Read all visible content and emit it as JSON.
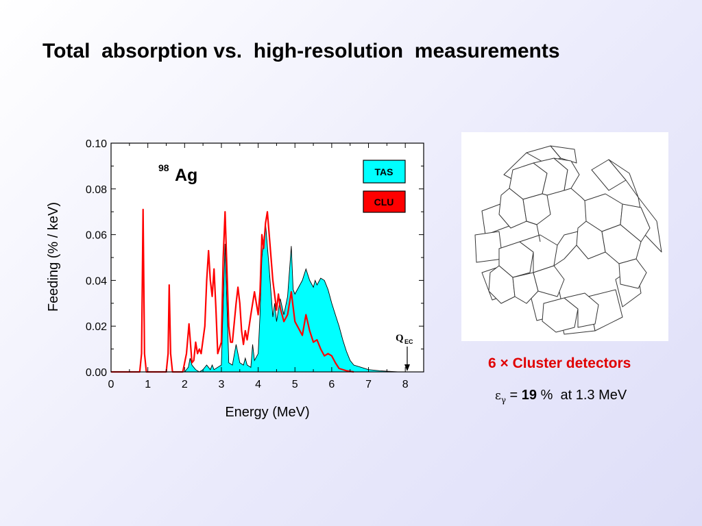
{
  "slide": {
    "title": "Total  absorption vs.  high-resolution  measurements"
  },
  "chart_data": {
    "type": "area",
    "xlabel": "Energy (MeV)",
    "ylabel": "Feeding (% / keV)",
    "xlim": [
      0,
      8.5
    ],
    "ylim": [
      0,
      0.1
    ],
    "x_ticks": [
      "0",
      "1",
      "2",
      "3",
      "4",
      "5",
      "6",
      "7",
      "8"
    ],
    "y_ticks": [
      "0.00",
      "0.02",
      "0.04",
      "0.06",
      "0.08",
      "0.10"
    ],
    "isotope": {
      "mass": "98",
      "element": "Ag"
    },
    "legend": [
      {
        "label": "TAS",
        "color": "#00ffff"
      },
      {
        "label": "CLU",
        "color": "#ff0000"
      }
    ],
    "annotation": {
      "symbol": "Q",
      "subscript": "EC",
      "x": 8.0
    },
    "series": [
      {
        "name": "TAS",
        "color": "#00ffff",
        "points": [
          [
            2.0,
            0.0
          ],
          [
            2.1,
            0.002
          ],
          [
            2.15,
            0.006
          ],
          [
            2.2,
            0.003
          ],
          [
            2.3,
            0.001
          ],
          [
            2.4,
            0.0
          ],
          [
            2.5,
            0.001
          ],
          [
            2.6,
            0.003
          ],
          [
            2.7,
            0.001
          ],
          [
            2.75,
            0.003
          ],
          [
            2.8,
            0.001
          ],
          [
            2.9,
            0.002
          ],
          [
            3.0,
            0.003
          ],
          [
            3.05,
            0.03
          ],
          [
            3.1,
            0.056
          ],
          [
            3.15,
            0.03
          ],
          [
            3.2,
            0.004
          ],
          [
            3.3,
            0.003
          ],
          [
            3.4,
            0.012
          ],
          [
            3.5,
            0.004
          ],
          [
            3.6,
            0.003
          ],
          [
            3.65,
            0.006
          ],
          [
            3.7,
            0.003
          ],
          [
            3.8,
            0.002
          ],
          [
            3.85,
            0.012
          ],
          [
            3.9,
            0.005
          ],
          [
            4.0,
            0.008
          ],
          [
            4.05,
            0.025
          ],
          [
            4.1,
            0.05
          ],
          [
            4.2,
            0.065
          ],
          [
            4.3,
            0.045
          ],
          [
            4.4,
            0.024
          ],
          [
            4.45,
            0.03
          ],
          [
            4.5,
            0.022
          ],
          [
            4.6,
            0.032
          ],
          [
            4.7,
            0.025
          ],
          [
            4.8,
            0.033
          ],
          [
            4.9,
            0.055
          ],
          [
            4.95,
            0.036
          ],
          [
            5.0,
            0.034
          ],
          [
            5.1,
            0.037
          ],
          [
            5.2,
            0.04
          ],
          [
            5.3,
            0.045
          ],
          [
            5.4,
            0.04
          ],
          [
            5.5,
            0.037
          ],
          [
            5.55,
            0.04
          ],
          [
            5.6,
            0.038
          ],
          [
            5.7,
            0.041
          ],
          [
            5.8,
            0.04
          ],
          [
            5.9,
            0.036
          ],
          [
            6.0,
            0.03
          ],
          [
            6.1,
            0.025
          ],
          [
            6.2,
            0.02
          ],
          [
            6.3,
            0.014
          ],
          [
            6.4,
            0.009
          ],
          [
            6.5,
            0.005
          ],
          [
            6.6,
            0.003
          ],
          [
            6.8,
            0.002
          ],
          [
            7.0,
            0.001
          ],
          [
            7.3,
            0.0005
          ],
          [
            7.8,
            0.0
          ]
        ]
      },
      {
        "name": "CLU",
        "color": "#ff0000",
        "points": [
          [
            0.0,
            0.0
          ],
          [
            0.78,
            0.0
          ],
          [
            0.83,
            0.008
          ],
          [
            0.87,
            0.071
          ],
          [
            0.91,
            0.008
          ],
          [
            0.96,
            0.0
          ],
          [
            1.5,
            0.0
          ],
          [
            1.55,
            0.008
          ],
          [
            1.58,
            0.038
          ],
          [
            1.62,
            0.008
          ],
          [
            1.67,
            0.0
          ],
          [
            1.95,
            0.0
          ],
          [
            2.05,
            0.008
          ],
          [
            2.12,
            0.021
          ],
          [
            2.2,
            0.004
          ],
          [
            2.25,
            0.005
          ],
          [
            2.3,
            0.013
          ],
          [
            2.35,
            0.008
          ],
          [
            2.4,
            0.01
          ],
          [
            2.45,
            0.008
          ],
          [
            2.55,
            0.02
          ],
          [
            2.6,
            0.04
          ],
          [
            2.65,
            0.053
          ],
          [
            2.7,
            0.04
          ],
          [
            2.75,
            0.033
          ],
          [
            2.8,
            0.045
          ],
          [
            2.85,
            0.028
          ],
          [
            2.9,
            0.008
          ],
          [
            3.0,
            0.013
          ],
          [
            3.05,
            0.05
          ],
          [
            3.1,
            0.07
          ],
          [
            3.15,
            0.045
          ],
          [
            3.2,
            0.02
          ],
          [
            3.25,
            0.013
          ],
          [
            3.3,
            0.013
          ],
          [
            3.4,
            0.03
          ],
          [
            3.45,
            0.037
          ],
          [
            3.5,
            0.03
          ],
          [
            3.55,
            0.018
          ],
          [
            3.6,
            0.012
          ],
          [
            3.65,
            0.018
          ],
          [
            3.7,
            0.014
          ],
          [
            3.8,
            0.025
          ],
          [
            3.9,
            0.035
          ],
          [
            4.0,
            0.025
          ],
          [
            4.05,
            0.035
          ],
          [
            4.1,
            0.06
          ],
          [
            4.15,
            0.054
          ],
          [
            4.2,
            0.065
          ],
          [
            4.25,
            0.07
          ],
          [
            4.3,
            0.06
          ],
          [
            4.4,
            0.04
          ],
          [
            4.5,
            0.027
          ],
          [
            4.55,
            0.034
          ],
          [
            4.6,
            0.028
          ],
          [
            4.7,
            0.022
          ],
          [
            4.8,
            0.025
          ],
          [
            4.9,
            0.035
          ],
          [
            5.0,
            0.022
          ],
          [
            5.1,
            0.019
          ],
          [
            5.2,
            0.016
          ],
          [
            5.3,
            0.025
          ],
          [
            5.4,
            0.018
          ],
          [
            5.5,
            0.013
          ],
          [
            5.6,
            0.014
          ],
          [
            5.7,
            0.01
          ],
          [
            5.8,
            0.007
          ],
          [
            5.9,
            0.008
          ],
          [
            6.0,
            0.007
          ],
          [
            6.1,
            0.004
          ],
          [
            6.2,
            0.0015
          ],
          [
            6.4,
            0.0005
          ],
          [
            6.6,
            0.0
          ]
        ]
      }
    ]
  },
  "detector_image": {
    "alt": "Cluster detector array drawing"
  },
  "caption": {
    "title": "6 × Cluster detectors",
    "eff_symbol": "ε",
    "eff_sub": "γ",
    "eff_equals": "= ",
    "eff_value": "19",
    "eff_unit": " %",
    "eff_rest": "  at 1.3 MeV"
  }
}
